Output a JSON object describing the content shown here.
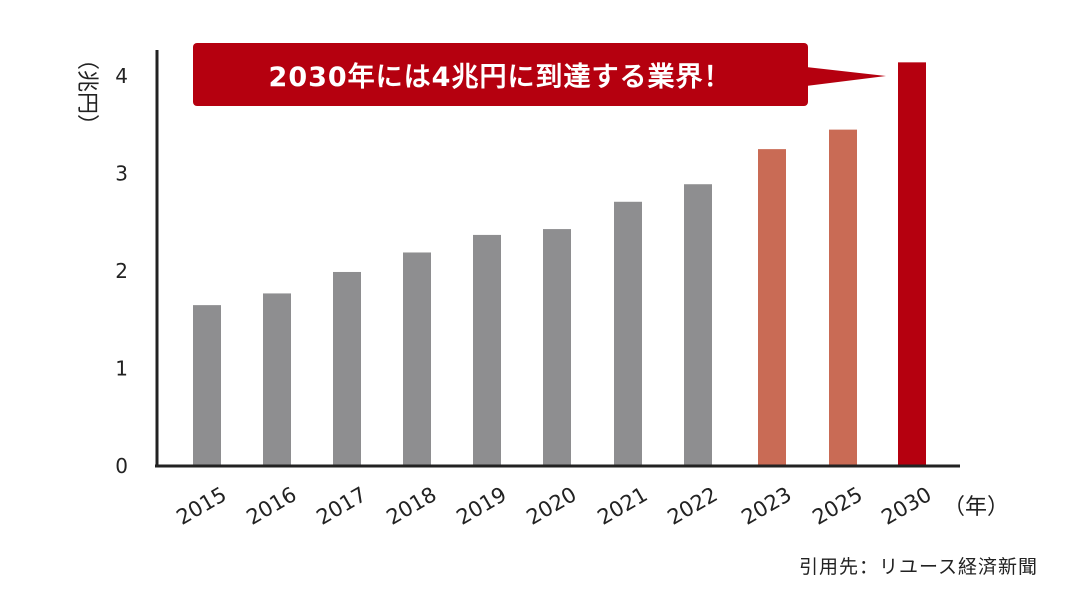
{
  "chart_data": {
    "type": "bar",
    "categories": [
      "2015",
      "2016",
      "2017",
      "2018",
      "2019",
      "2020",
      "2021",
      "2022",
      "2023",
      "2025",
      "2030"
    ],
    "values": [
      1.65,
      1.77,
      1.99,
      2.19,
      2.37,
      2.43,
      2.71,
      2.89,
      3.25,
      3.45,
      4.14
    ],
    "bar_kinds": [
      "actual",
      "actual",
      "actual",
      "actual",
      "actual",
      "actual",
      "actual",
      "actual",
      "forecast",
      "forecast",
      "target"
    ],
    "ylabel": "（兆円）",
    "xlabel": "（年）",
    "yticks": [
      0,
      1,
      2,
      3,
      4
    ],
    "ylim": [
      0,
      4.2
    ],
    "grid": false,
    "annotation": "2030年には4兆円に到達する業界！",
    "colors": {
      "actual": "#8e8e90",
      "forecast": "#c96b55",
      "target": "#b5000f",
      "callout": "#b5000f",
      "axis": "#222222"
    }
  },
  "source": "引用先：リユース経済新聞"
}
